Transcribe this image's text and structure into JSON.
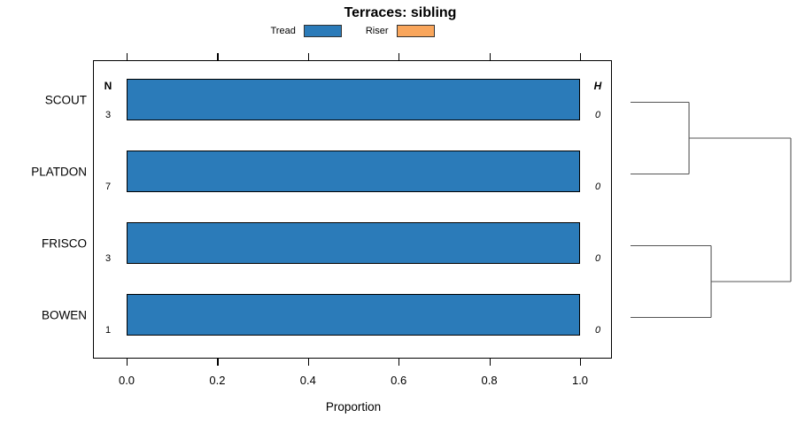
{
  "title": "Terraces: sibling",
  "legend": [
    {
      "label": "Tread",
      "color": "#2B7BB9"
    },
    {
      "label": "Riser",
      "color": "#F9A65C"
    }
  ],
  "chart_data": {
    "type": "bar",
    "orientation": "horizontal-stacked",
    "title": "Terraces: sibling",
    "xlabel": "Proportion",
    "xlim": [
      0,
      1.08
    ],
    "xticks": [
      0,
      0.2,
      0.4,
      0.6,
      0.8,
      1
    ],
    "xtick_labels": [
      "0.0",
      "0.2",
      "0.4",
      "0.6",
      "0.8",
      "1.0"
    ],
    "categories": [
      "SCOUT",
      "PLATDON",
      "FRISCO",
      "BOWEN"
    ],
    "series": [
      {
        "name": "Tread",
        "color": "#2B7BB9",
        "values": [
          1,
          1,
          1,
          1
        ]
      },
      {
        "name": "Riser",
        "color": "#F9A65C",
        "values": [
          0,
          0,
          0,
          0
        ]
      }
    ],
    "n_column": {
      "header": "N",
      "values": [
        "3",
        "7",
        "3",
        "1"
      ]
    },
    "h_column": {
      "header": "H",
      "values": [
        "0",
        "0",
        "0",
        "0"
      ]
    },
    "legend_position": "top",
    "grid": false,
    "dendrogram": {
      "side": "right",
      "line_color": "#555555",
      "tree": {
        "h": 1.0,
        "children": [
          {
            "h": 0.365,
            "children": [
              {
                "leaf": "SCOUT"
              },
              {
                "leaf": "PLATDON"
              }
            ]
          },
          {
            "h": 0.503,
            "children": [
              {
                "leaf": "FRISCO"
              },
              {
                "leaf": "BOWEN"
              }
            ]
          }
        ]
      }
    }
  }
}
